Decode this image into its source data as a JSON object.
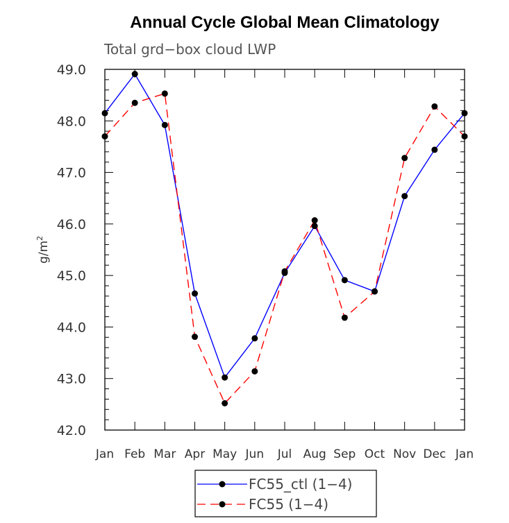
{
  "chart_data": {
    "type": "line",
    "title": "Annual Cycle Global Mean Climatology",
    "subtitle": "Total grd−box cloud LWP",
    "ylabel": "g/m",
    "ylabel_superscript": "2",
    "xlabel": "",
    "categories": [
      "Jan",
      "Feb",
      "Mar",
      "Apr",
      "May",
      "Jun",
      "Jul",
      "Aug",
      "Sep",
      "Oct",
      "Nov",
      "Dec",
      "Jan"
    ],
    "ylim": [
      42.0,
      49.0
    ],
    "yticks": [
      42.0,
      43.0,
      44.0,
      45.0,
      46.0,
      47.0,
      48.0,
      49.0
    ],
    "ytick_labels": [
      "42.0",
      "43.0",
      "44.0",
      "45.0",
      "46.0",
      "47.0",
      "48.0",
      "49.0"
    ],
    "series": [
      {
        "name": "FC55_ctl (1−4)",
        "color": "#0000ff",
        "dash": "solid",
        "values": [
          48.15,
          48.91,
          47.92,
          44.65,
          43.02,
          43.78,
          45.05,
          45.96,
          44.91,
          44.69,
          46.54,
          47.44,
          48.15
        ]
      },
      {
        "name": "FC55 (1−4)",
        "color": "#ff0000",
        "dash": "dashed",
        "values": [
          47.7,
          48.35,
          48.53,
          43.81,
          42.52,
          43.14,
          45.08,
          46.07,
          44.18,
          44.69,
          47.28,
          48.28,
          47.7
        ]
      }
    ],
    "grid": false,
    "legend_position": "bottom-center"
  }
}
